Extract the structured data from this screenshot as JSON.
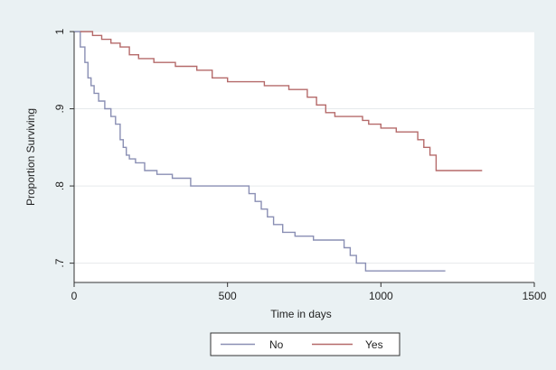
{
  "chart_data": {
    "type": "line",
    "title": "",
    "xlabel": "Time in days",
    "ylabel": "Proportion Surviving",
    "xlim": [
      0,
      1500
    ],
    "ylim": [
      0.675,
      1.0
    ],
    "xticks": [
      0,
      500,
      1000,
      1500
    ],
    "xtick_labels": [
      "0",
      "500",
      "1000",
      "1500"
    ],
    "yticks": [
      0.7,
      0.8,
      0.9,
      1.0
    ],
    "ytick_labels": [
      ".7",
      ".8",
      ".9",
      "1"
    ],
    "grid": "horizontal",
    "legend_position": "bottom",
    "series": [
      {
        "name": "No",
        "color": "#8a8fb4",
        "x": [
          0,
          20,
          35,
          45,
          55,
          65,
          80,
          100,
          120,
          135,
          150,
          160,
          170,
          180,
          200,
          230,
          270,
          320,
          380,
          450,
          550,
          570,
          590,
          610,
          630,
          650,
          680,
          720,
          780,
          860,
          880,
          900,
          920,
          950,
          1000,
          1100,
          1210
        ],
        "y": [
          1.0,
          0.98,
          0.96,
          0.94,
          0.93,
          0.92,
          0.91,
          0.9,
          0.89,
          0.88,
          0.86,
          0.85,
          0.84,
          0.835,
          0.83,
          0.82,
          0.815,
          0.81,
          0.8,
          0.8,
          0.8,
          0.79,
          0.78,
          0.77,
          0.76,
          0.75,
          0.74,
          0.735,
          0.73,
          0.73,
          0.72,
          0.71,
          0.7,
          0.69,
          0.69,
          0.69,
          0.69
        ]
      },
      {
        "name": "Yes",
        "color": "#b56a6a",
        "x": [
          20,
          60,
          90,
          120,
          150,
          180,
          210,
          260,
          330,
          400,
          450,
          500,
          560,
          620,
          700,
          760,
          790,
          820,
          850,
          880,
          940,
          960,
          1000,
          1050,
          1120,
          1140,
          1160,
          1180,
          1330
        ],
        "y": [
          1.0,
          0.995,
          0.99,
          0.985,
          0.98,
          0.97,
          0.965,
          0.96,
          0.955,
          0.95,
          0.94,
          0.935,
          0.935,
          0.93,
          0.925,
          0.915,
          0.905,
          0.895,
          0.89,
          0.89,
          0.885,
          0.88,
          0.875,
          0.87,
          0.86,
          0.85,
          0.84,
          0.82,
          0.82
        ]
      }
    ]
  }
}
